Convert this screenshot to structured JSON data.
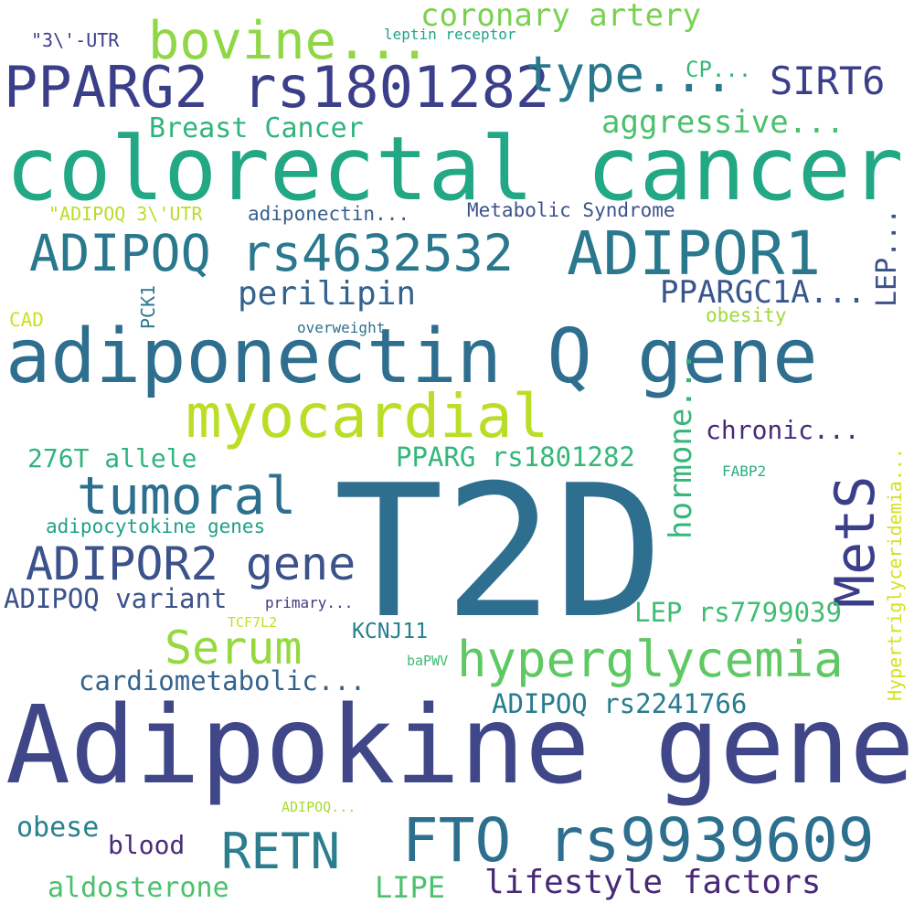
{
  "colors": {
    "background": "#ffffff",
    "palette": [
      "#440154",
      "#46327e",
      "#365c8d",
      "#277f8e",
      "#1fa187",
      "#4ac16d",
      "#a0da39",
      "#c8e020"
    ]
  },
  "words": [
    {
      "text": "T2D",
      "color": "#2e6e8e"
    },
    {
      "text": "Adipokine gene",
      "color": "#3f4788"
    },
    {
      "text": "colorectal cancer",
      "color": "#22a884"
    },
    {
      "text": "adiponectin Q gene",
      "color": "#2e6e8e"
    },
    {
      "text": "PPARG2 rs1801282",
      "color": "#3b3f8a"
    },
    {
      "text": "ADIPOQ rs4632532",
      "color": "#2a788e"
    },
    {
      "text": "ADIPOR1",
      "color": "#2a788e"
    },
    {
      "text": "FTO rs9939609",
      "color": "#2d6f8e"
    },
    {
      "text": "myocardial",
      "color": "#bade28"
    },
    {
      "text": "bovine...",
      "color": "#8fd744"
    },
    {
      "text": "type...",
      "color": "#2a788e"
    },
    {
      "text": "tumoral",
      "color": "#2d6f8e"
    },
    {
      "text": "MetS",
      "color": "#3b3f8a"
    },
    {
      "text": "ADIPOR2 gene",
      "color": "#3b528b"
    },
    {
      "text": "hyperglycemia",
      "color": "#5ec962"
    },
    {
      "text": "RETN",
      "color": "#2c7e8e"
    },
    {
      "text": "Serum",
      "color": "#95d840"
    },
    {
      "text": "SIRT6",
      "color": "#3b3f8a"
    },
    {
      "text": "coronary artery",
      "color": "#7ad151"
    },
    {
      "text": "aggressive...",
      "color": "#4ac16d"
    },
    {
      "text": "lifestyle factors",
      "color": "#482878"
    },
    {
      "text": "perilipin",
      "color": "#33638d"
    },
    {
      "text": "PPARGC1A...",
      "color": "#39568c"
    },
    {
      "text": "hormone...",
      "color": "#35b779"
    },
    {
      "text": "LEP...",
      "color": "#3b528b"
    },
    {
      "text": "Breast Cancer",
      "color": "#2fb47c"
    },
    {
      "text": "ADIPOQ variant",
      "color": "#3b528b"
    },
    {
      "text": "cardiometabolic...",
      "color": "#33638d"
    },
    {
      "text": "PPARG rs1801282",
      "color": "#35b779"
    },
    {
      "text": "LEP rs7799039",
      "color": "#40bd72"
    },
    {
      "text": "ADIPOQ rs2241766",
      "color": "#287c8e"
    },
    {
      "text": "chronic...",
      "color": "#472c7a"
    },
    {
      "text": "276T allele",
      "color": "#2fb47c"
    },
    {
      "text": "obese",
      "color": "#26828e"
    },
    {
      "text": "aldosterone",
      "color": "#4ac16d"
    },
    {
      "text": "LIPE",
      "color": "#4ac16d"
    },
    {
      "text": "blood",
      "color": "#472c7a"
    },
    {
      "text": "adipocytokine genes",
      "color": "#1fa187"
    },
    {
      "text": "Hypertriglyceridemia...",
      "color": "#d2e21b"
    },
    {
      "text": "KCNJ11",
      "color": "#27808e"
    },
    {
      "text": "CP...",
      "color": "#37b878"
    },
    {
      "text": "adiponectin...",
      "color": "#355f8d"
    },
    {
      "text": "Metabolic Syndrome",
      "color": "#3b528b"
    },
    {
      "text": "\"ADIPOQ 3\\'UTR",
      "color": "#b8de29"
    },
    {
      "text": "\"3\\'-UTR",
      "color": "#3b3f8a"
    },
    {
      "text": "leptin receptor",
      "color": "#20a386"
    },
    {
      "text": "obesity",
      "color": "#a0da39"
    },
    {
      "text": "CAD",
      "color": "#cde11d"
    },
    {
      "text": "PCK1",
      "color": "#2a788e"
    },
    {
      "text": "overweight",
      "color": "#2c728e"
    },
    {
      "text": "FABP2",
      "color": "#29af7f"
    },
    {
      "text": "primary...",
      "color": "#453781"
    },
    {
      "text": "TCF7L2",
      "color": "#c2df23"
    },
    {
      "text": "baPWV",
      "color": "#3dbc74"
    },
    {
      "text": "ADIPOQ...",
      "color": "#a8db34"
    }
  ]
}
